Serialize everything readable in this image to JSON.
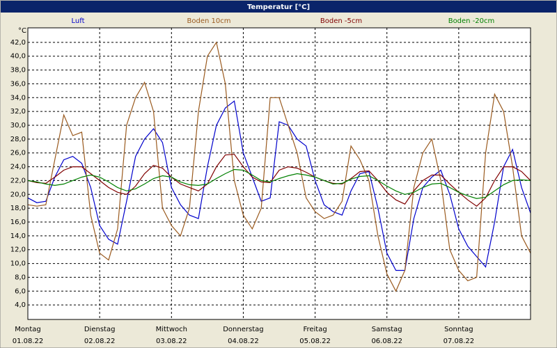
{
  "chart_data": {
    "type": "line",
    "title": "Temperatur [°C]",
    "y_unit": "°C",
    "x": [
      0,
      3,
      6,
      9,
      12,
      15,
      18,
      21,
      24,
      27,
      30,
      33,
      36,
      39,
      42,
      45,
      48,
      51,
      54,
      57,
      60,
      63,
      66,
      69,
      72,
      75,
      78,
      81,
      84,
      87,
      90,
      93,
      96,
      99,
      102,
      105,
      108,
      111,
      114,
      117,
      120,
      123,
      126,
      129,
      132,
      135,
      138,
      141,
      144,
      147,
      150,
      153,
      156,
      159,
      162,
      165,
      168
    ],
    "xlim": [
      0,
      168
    ],
    "xticks": [
      {
        "value": 0,
        "label": "Montag",
        "date": "01.08.22"
      },
      {
        "value": 24,
        "label": "Dienstag",
        "date": "02.08.22"
      },
      {
        "value": 48,
        "label": "Mittwoch",
        "date": "03.08.22"
      },
      {
        "value": 72,
        "label": "Donnerstag",
        "date": "04.08.22"
      },
      {
        "value": 96,
        "label": "Freitag",
        "date": "05.08.22"
      },
      {
        "value": 120,
        "label": "Samstag",
        "date": "06.08.22"
      },
      {
        "value": 144,
        "label": "Sonntag",
        "date": "07.08.22"
      }
    ],
    "ylim": [
      1.9,
      44.1
    ],
    "yticks": [
      {
        "value": 4,
        "label": "4,0"
      },
      {
        "value": 6,
        "label": "6,0"
      },
      {
        "value": 8,
        "label": "8,0"
      },
      {
        "value": 10,
        "label": "10,0"
      },
      {
        "value": 12,
        "label": "12,0"
      },
      {
        "value": 14,
        "label": "14,0"
      },
      {
        "value": 16,
        "label": "16,0"
      },
      {
        "value": 18,
        "label": "18,0"
      },
      {
        "value": 20,
        "label": "20,0"
      },
      {
        "value": 22,
        "label": "22,0"
      },
      {
        "value": 24,
        "label": "24,0"
      },
      {
        "value": 26,
        "label": "26,0"
      },
      {
        "value": 28,
        "label": "28,0"
      },
      {
        "value": 30,
        "label": "30,0"
      },
      {
        "value": 32,
        "label": "32,0"
      },
      {
        "value": 34,
        "label": "34,0"
      },
      {
        "value": 36,
        "label": "36,0"
      },
      {
        "value": 38,
        "label": "38,0"
      },
      {
        "value": 40,
        "label": "40,0"
      },
      {
        "value": 42,
        "label": "42,0"
      }
    ],
    "grid": true,
    "series": [
      {
        "name": "Luft",
        "color": "#0000cc",
        "values": [
          19.5,
          18.8,
          19.0,
          22.5,
          25.0,
          25.5,
          24.5,
          21.0,
          15.5,
          13.5,
          12.8,
          19.0,
          25.5,
          28.0,
          29.5,
          27.5,
          21.0,
          18.5,
          17.0,
          16.5,
          24.0,
          30.0,
          32.5,
          33.5,
          26.0,
          22.5,
          19.0,
          19.5,
          30.5,
          30.0,
          28.0,
          27.0,
          22.0,
          18.5,
          17.5,
          17.0,
          20.5,
          23.0,
          23.3,
          18.0,
          11.5,
          9.0,
          9.0,
          16.5,
          21.0,
          22.5,
          23.5,
          20.0,
          15.0,
          12.5,
          11.0,
          9.5,
          16.0,
          24.0,
          26.5,
          21.0,
          17.3
        ]
      },
      {
        "name": "Boden 10cm",
        "color": "#9a5a1e",
        "values": [
          18.5,
          18.3,
          18.5,
          25.0,
          31.5,
          28.5,
          29.0,
          17.0,
          11.5,
          10.5,
          15.0,
          30.0,
          34.0,
          36.2,
          32.0,
          18.0,
          15.5,
          14.0,
          18.0,
          32.0,
          40.0,
          42.0,
          36.0,
          22.0,
          17.0,
          15.0,
          18.0,
          34.0,
          34.0,
          30.0,
          26.0,
          19.5,
          17.5,
          16.5,
          17.0,
          19.0,
          27.0,
          25.0,
          22.0,
          14.0,
          8.5,
          6.0,
          9.0,
          21.0,
          26.0,
          28.0,
          22.0,
          12.0,
          9.0,
          7.5,
          8.0,
          26.0,
          34.5,
          32.0,
          24.0,
          14.0,
          11.5
        ]
      },
      {
        "name": "Boden -5cm",
        "color": "#800000",
        "values": [
          22.0,
          21.7,
          21.6,
          22.5,
          23.5,
          24.0,
          24.0,
          23.0,
          22.0,
          21.0,
          20.3,
          20.0,
          21.2,
          23.0,
          24.2,
          23.8,
          22.5,
          21.5,
          21.0,
          20.5,
          21.5,
          24.0,
          25.7,
          25.8,
          24.0,
          22.5,
          21.8,
          21.7,
          23.5,
          24.0,
          23.8,
          23.2,
          22.5,
          22.0,
          21.6,
          21.5,
          22.3,
          23.3,
          23.4,
          22.0,
          20.3,
          19.2,
          18.6,
          20.5,
          22.0,
          22.8,
          22.8,
          21.5,
          20.3,
          19.2,
          18.3,
          19.5,
          22.0,
          24.0,
          24.0,
          23.3,
          22.0
        ]
      },
      {
        "name": "Boden -20cm",
        "color": "#008000",
        "values": [
          22.0,
          21.8,
          21.5,
          21.3,
          21.5,
          22.0,
          22.5,
          22.8,
          22.5,
          21.8,
          21.0,
          20.5,
          20.8,
          21.5,
          22.3,
          22.7,
          22.5,
          21.8,
          21.4,
          21.3,
          21.5,
          22.3,
          23.0,
          23.6,
          23.5,
          22.8,
          22.0,
          21.8,
          22.3,
          22.7,
          23.0,
          22.8,
          22.5,
          22.0,
          21.5,
          21.6,
          22.2,
          22.6,
          22.7,
          22.0,
          21.2,
          20.5,
          20.0,
          20.3,
          21.0,
          21.5,
          21.6,
          21.0,
          20.3,
          19.8,
          19.4,
          19.6,
          20.5,
          21.4,
          22.0,
          22.1,
          22.0
        ]
      }
    ]
  }
}
